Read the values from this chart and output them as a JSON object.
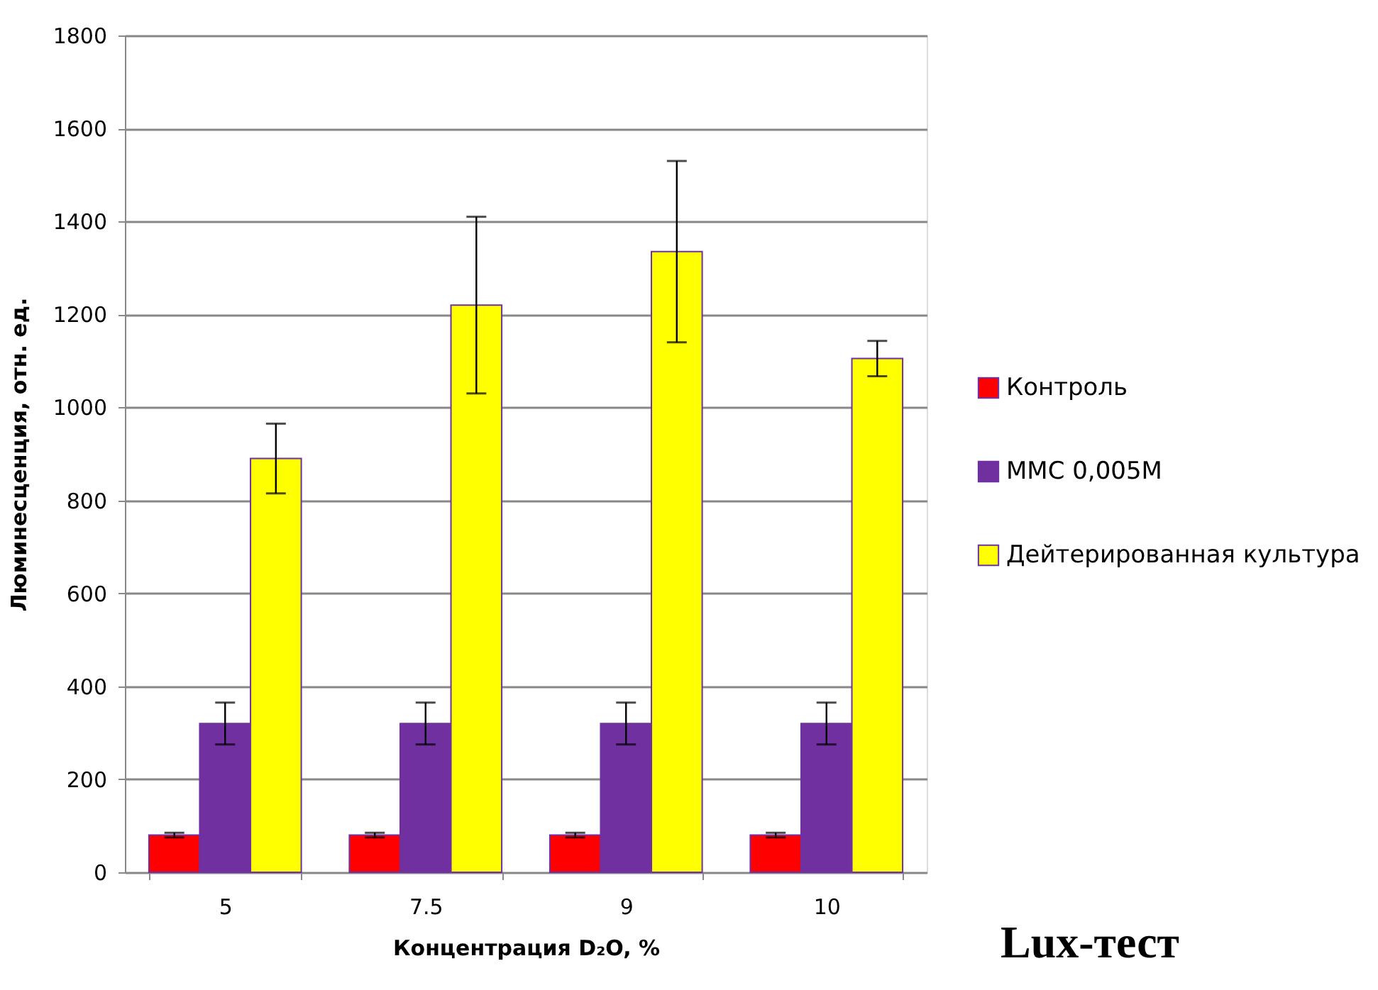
{
  "chart_data": {
    "type": "bar",
    "xlabel": "Концентрация D₂O, %",
    "ylabel": "Люминесценция, отн. ед.",
    "categories": [
      "5",
      "7.5",
      "9",
      "10"
    ],
    "series": [
      {
        "name": "Контроль",
        "color": "#ff0000",
        "values": [
          80,
          80,
          80,
          80
        ],
        "errors": [
          5,
          5,
          5,
          5
        ]
      },
      {
        "name": "ММС 0,005М",
        "color": "#7030a0",
        "values": [
          320,
          320,
          320,
          320
        ],
        "errors": [
          45,
          45,
          45,
          45
        ]
      },
      {
        "name": "Дейтерированная культура",
        "color": "#ffff00",
        "values": [
          890,
          1220,
          1335,
          1105
        ],
        "errors": [
          75,
          190,
          195,
          38
        ]
      }
    ],
    "ylim": [
      0,
      1800
    ],
    "yticks": [
      0,
      200,
      400,
      600,
      800,
      1000,
      1200,
      1400,
      1600,
      1800
    ],
    "grid": "y",
    "legend": "right",
    "annotations": [
      "Lux-тест"
    ]
  }
}
